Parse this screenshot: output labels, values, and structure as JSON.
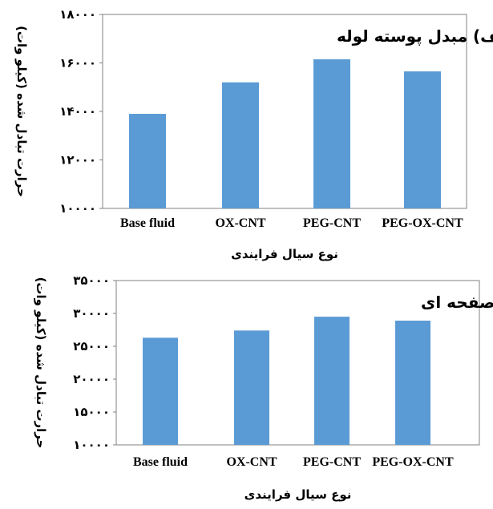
{
  "chart_data": [
    {
      "type": "bar",
      "title": "الف) مبدل پوسته لوله",
      "xlabel": "نوع سیال فرایندی",
      "ylabel": "حرارت تبادل شده (کیلو وات)",
      "categories": [
        "Base fluid",
        "OX-CNT",
        "PEG-CNT",
        "PEG-OX-CNT"
      ],
      "values": [
        13900,
        15200,
        16150,
        15650
      ],
      "ylim": [
        10000,
        18000
      ],
      "yticks": [
        10000,
        12000,
        14000,
        16000,
        18000
      ],
      "ytick_labels": [
        "۱۰۰۰۰",
        "۱۲۰۰۰",
        "۱۴۰۰۰",
        "۱۶۰۰۰",
        "۱۸۰۰۰"
      ],
      "grid": false,
      "color": "#5b9bd5"
    },
    {
      "type": "bar",
      "title": "ب) مبدل صفحه ای",
      "xlabel": "نوع سیال فرایندی",
      "ylabel": "حرارت تبادل شده (کیلو وات)",
      "categories": [
        "Base fluid",
        "OX-CNT",
        "PEG-CNT",
        "PEG-OX-CNT"
      ],
      "values": [
        26300,
        27400,
        29500,
        28900
      ],
      "ylim": [
        10000,
        35000
      ],
      "yticks": [
        10000,
        15000,
        20000,
        25000,
        30000,
        35000
      ],
      "ytick_labels": [
        "۱۰۰۰۰",
        "۱۵۰۰۰",
        "۲۰۰۰۰",
        "۲۵۰۰۰",
        "۳۰۰۰۰",
        "۳۵۰۰۰"
      ],
      "grid": false,
      "color": "#5b9bd5"
    }
  ]
}
